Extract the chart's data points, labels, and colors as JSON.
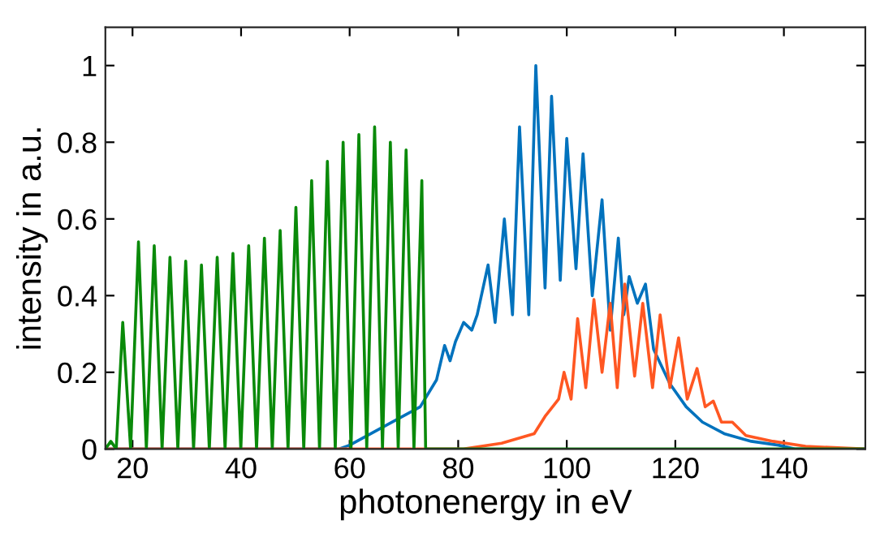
{
  "chart_data": {
    "type": "line",
    "xlabel": "photonenergy in eV",
    "ylabel": "intensity in a.u.",
    "xlim": [
      15,
      155
    ],
    "ylim": [
      0,
      1.1
    ],
    "xticks": [
      20,
      40,
      60,
      80,
      100,
      120,
      140
    ],
    "yticks": [
      0,
      0.2,
      0.4,
      0.6,
      0.8,
      1
    ],
    "grid": false,
    "legend": false,
    "marker": "none",
    "line_style": "solid",
    "series": [
      {
        "color": "#0072bd",
        "x": [
          15,
          58,
          60,
          73,
          76,
          77.5,
          78.5,
          79.5,
          81,
          82.5,
          83.5,
          85.5,
          86.8,
          88.5,
          90,
          91.3,
          93,
          94.3,
          96,
          97.2,
          98.8,
          100,
          101.7,
          103,
          104.7,
          106.5,
          108,
          109.5,
          110.5,
          111.5,
          113,
          114.5,
          116,
          119,
          122,
          125,
          129,
          134,
          139,
          142,
          155
        ],
        "values": [
          0,
          0,
          0.01,
          0.11,
          0.18,
          0.27,
          0.23,
          0.28,
          0.33,
          0.31,
          0.35,
          0.48,
          0.33,
          0.6,
          0.35,
          0.84,
          0.35,
          1.0,
          0.42,
          0.92,
          0.44,
          0.81,
          0.47,
          0.77,
          0.4,
          0.65,
          0.31,
          0.55,
          0.35,
          0.45,
          0.38,
          0.43,
          0.26,
          0.17,
          0.11,
          0.07,
          0.04,
          0.02,
          0.01,
          0,
          0
        ]
      },
      {
        "color": "#ff5722",
        "x": [
          15,
          81,
          88,
          94,
          96,
          98.5,
          99.5,
          100.8,
          102,
          103.5,
          105,
          106.5,
          108,
          109.3,
          110.7,
          112.5,
          114,
          115.8,
          117.2,
          119,
          120.6,
          122.2,
          124,
          125.5,
          127,
          128.5,
          130.5,
          133,
          138,
          144,
          155
        ],
        "values": [
          0,
          0,
          0.015,
          0.04,
          0.085,
          0.13,
          0.2,
          0.13,
          0.34,
          0.16,
          0.39,
          0.2,
          0.38,
          0.16,
          0.43,
          0.19,
          0.38,
          0.16,
          0.35,
          0.16,
          0.29,
          0.13,
          0.21,
          0.11,
          0.125,
          0.07,
          0.07,
          0.035,
          0.02,
          0.007,
          0
        ]
      },
      {
        "color": "#0a8a0a",
        "x": [
          15,
          16,
          17,
          18.2,
          19.65,
          21.1,
          22.55,
          24.0,
          25.45,
          26.9,
          28.35,
          29.8,
          31.25,
          32.7,
          34.15,
          35.6,
          37.05,
          38.5,
          39.95,
          41.4,
          42.85,
          44.3,
          45.75,
          47.2,
          48.65,
          50.1,
          51.55,
          53.0,
          54.45,
          55.9,
          57.35,
          58.8,
          60.25,
          61.7,
          63.15,
          64.6,
          66.05,
          67.5,
          68.95,
          70.4,
          71.85,
          73.3,
          74,
          155
        ],
        "values": [
          0,
          0.02,
          0,
          0.33,
          0,
          0.54,
          0,
          0.53,
          0,
          0.5,
          0,
          0.49,
          0,
          0.48,
          0,
          0.5,
          0,
          0.51,
          0,
          0.53,
          0,
          0.55,
          0,
          0.57,
          0,
          0.63,
          0,
          0.7,
          0,
          0.75,
          0,
          0.8,
          0,
          0.82,
          0,
          0.84,
          0,
          0.8,
          0,
          0.78,
          0,
          0.7,
          0,
          0
        ]
      }
    ]
  }
}
